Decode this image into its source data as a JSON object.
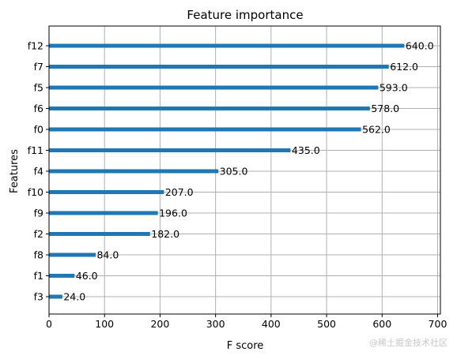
{
  "chart_data": {
    "type": "bar",
    "orientation": "horizontal",
    "title": "Feature importance",
    "xlabel": "F score",
    "ylabel": "Features",
    "categories": [
      "f12",
      "f7",
      "f5",
      "f6",
      "f0",
      "f11",
      "f4",
      "f10",
      "f9",
      "f2",
      "f8",
      "f1",
      "f3"
    ],
    "values": [
      640,
      612,
      593,
      578,
      562,
      435,
      305,
      207,
      196,
      182,
      84,
      46,
      24
    ],
    "value_labels": [
      "640.0",
      "612.0",
      "593.0",
      "578.0",
      "562.0",
      "435.0",
      "305.0",
      "207.0",
      "196.0",
      "182.0",
      "84.0",
      "46.0",
      "24.0"
    ],
    "xlim": [
      0,
      705
    ],
    "xticks": [
      0,
      100,
      200,
      300,
      400,
      500,
      600,
      700
    ],
    "grid": true,
    "bar_color": "#1f77b4",
    "grid_color": "#b0b0b0"
  },
  "watermark": "@稀土掘金技术社区"
}
